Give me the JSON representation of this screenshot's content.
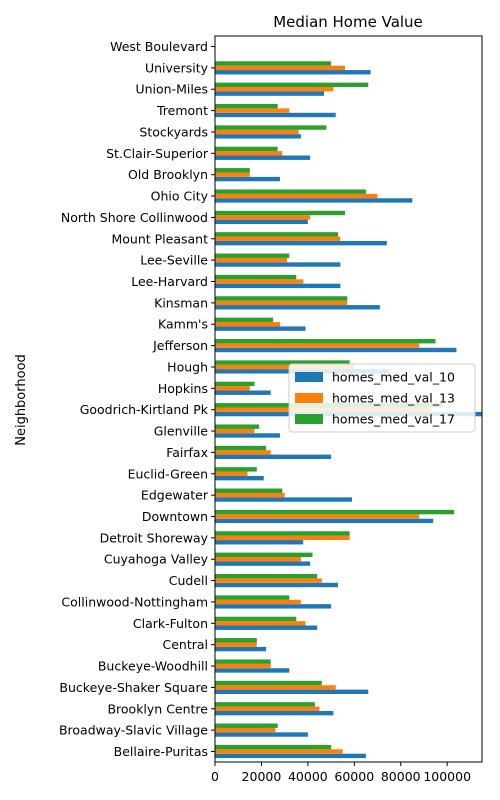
{
  "chart_data": {
    "type": "bar",
    "orientation": "horizontal",
    "title": "Median Home Value",
    "ylabel": "Neighborhood",
    "xlabel": "",
    "xlim": [
      0,
      115000
    ],
    "xticks": [
      0,
      20000,
      40000,
      60000,
      80000,
      100000
    ],
    "xtick_labels": [
      "0",
      "20000",
      "40000",
      "60000",
      "80000",
      "100000"
    ],
    "grid": false,
    "legend_position": "center-right",
    "categories": [
      "Bellaire-Puritas",
      "Broadway-Slavic Village",
      "Brooklyn Centre",
      "Buckeye-Shaker Square",
      "Buckeye-Woodhill",
      "Central",
      "Clark-Fulton",
      "Collinwood-Nottingham",
      "Cudell",
      "Cuyahoga Valley",
      "Detroit Shoreway",
      "Downtown",
      "Edgewater",
      "Euclid-Green",
      "Fairfax",
      "Glenville",
      "Goodrich-Kirtland Pk",
      "Hopkins",
      "Hough",
      "Jefferson",
      "Kamm's",
      "Kinsman",
      "Lee-Harvard",
      "Lee-Seville",
      "Mount Pleasant",
      "North Shore Collinwood",
      "Ohio City",
      "Old Brooklyn",
      "St.Clair-Superior",
      "Stockyards",
      "Tremont",
      "Union-Miles",
      "University",
      "West Boulevard"
    ],
    "category_labels": [
      " Bellaire-Puritas",
      " Broadway-Slavic Village",
      " Brooklyn Centre",
      " Buckeye-Shaker Square",
      " Buckeye-Woodhill",
      " Central",
      " Clark-Fulton",
      " Collinwood-Nottingham",
      " Cudell",
      " Cuyahoga Valley",
      " Detroit Shoreway",
      " Downtown",
      " Edgewater",
      " Euclid-Green",
      " Fairfax",
      " Glenville",
      " Goodrich-Kirtland Pk",
      " Hopkins",
      " Hough",
      " Jefferson",
      " Kamm's",
      " Kinsman",
      " Lee-Harvard",
      " Lee-Seville",
      " Mount Pleasant",
      " North Shore Collinwood",
      " Ohio City",
      " Old Brooklyn",
      "St.Clair-Superior",
      " Stockyards",
      " Tremont",
      " Union-Miles",
      " University",
      " West Boulevard"
    ],
    "series": [
      {
        "name": "homes_med_val_10",
        "color": "#1f77b4",
        "values": [
          65000,
          40000,
          51000,
          66000,
          32000,
          22000,
          44000,
          50000,
          53000,
          41000,
          38000,
          94000,
          59000,
          21000,
          50000,
          28000,
          115000,
          24000,
          75000,
          104000,
          39000,
          71000,
          54000,
          54000,
          74000,
          40000,
          85000,
          28000,
          41000,
          37000,
          52000,
          47000,
          67000,
          0
        ]
      },
      {
        "name": "homes_med_val_13",
        "color": "#ff7f0e",
        "values": [
          55000,
          26000,
          45000,
          52000,
          24000,
          18000,
          39000,
          37000,
          46000,
          37000,
          58000,
          88000,
          30000,
          14000,
          24000,
          17000,
          93000,
          15000,
          60000,
          88000,
          28000,
          57000,
          38000,
          31000,
          54000,
          41000,
          70000,
          15000,
          29000,
          36000,
          32000,
          51000,
          56000,
          0
        ]
      },
      {
        "name": "homes_med_val_17",
        "color": "#2ca02c",
        "values": [
          50000,
          27000,
          43000,
          46000,
          24000,
          18000,
          35000,
          32000,
          44000,
          42000,
          58000,
          103000,
          29000,
          18000,
          22000,
          19000,
          98000,
          17000,
          58000,
          95000,
          25000,
          57000,
          35000,
          32000,
          53000,
          56000,
          65000,
          15000,
          27000,
          48000,
          27000,
          66000,
          50000,
          0
        ]
      }
    ]
  }
}
